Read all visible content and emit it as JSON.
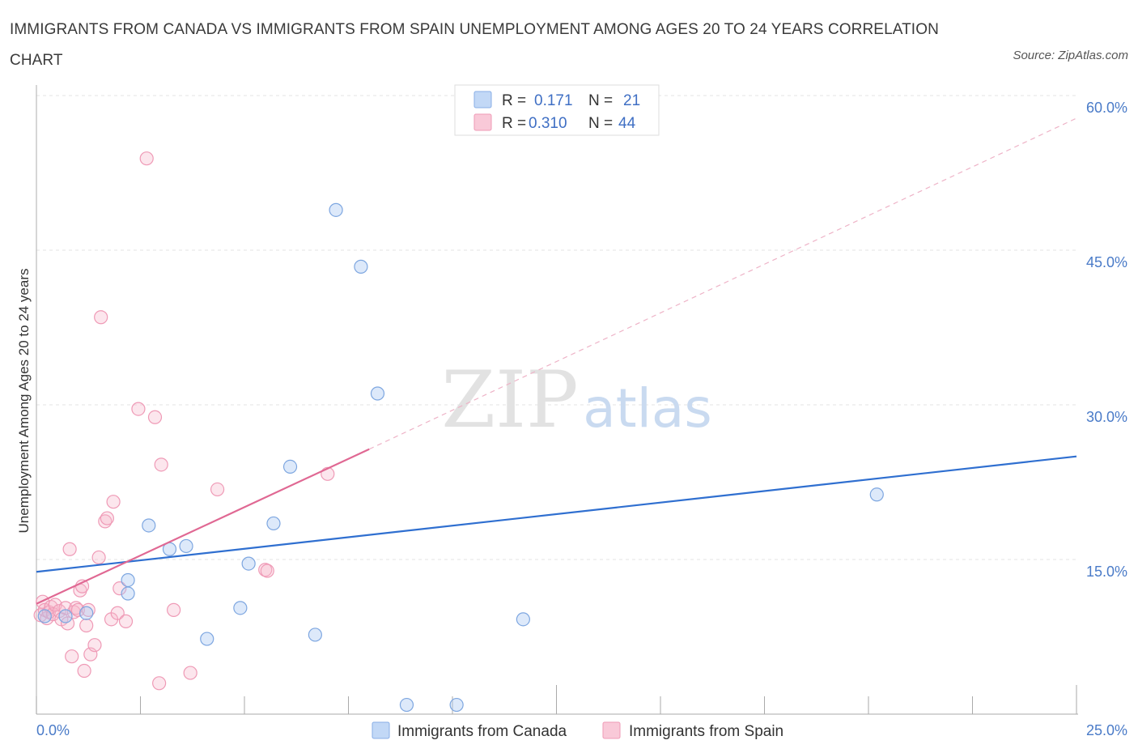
{
  "title": "IMMIGRANTS FROM CANADA VS IMMIGRANTS FROM SPAIN UNEMPLOYMENT AMONG AGES 20 TO 24 YEARS CORRELATION CHART",
  "source": "Source: ZipAtlas.com",
  "colors": {
    "canada": "#a9c8f3",
    "canada_line": "#2f6fd0",
    "spain": "#f7b8cb",
    "spain_line": "#e06893",
    "axis_text": "#4a7bc8"
  },
  "chart_data": {
    "type": "scatter",
    "title": "IMMIGRANTS FROM CANADA VS IMMIGRANTS FROM SPAIN UNEMPLOYMENT AMONG AGES 20 TO 24 YEARS CORRELATION CHART",
    "xlabel": "",
    "ylabel": "Unemployment Among Ages 20 to 24 years",
    "xlim": [
      0,
      25
    ],
    "ylim": [
      0,
      60
    ],
    "x_tick_labels": [
      "0.0%",
      "25.0%"
    ],
    "y_ticks": [
      15,
      30,
      45,
      60
    ],
    "y_tick_labels": [
      "15.0%",
      "30.0%",
      "45.0%",
      "60.0%"
    ],
    "grid": true,
    "legend_top": [
      {
        "r_label": "R =",
        "r_value": "0.171",
        "n_label": "N =",
        "n_value": "21"
      },
      {
        "r_label": "R =",
        "r_value": "0.310",
        "n_label": "N =",
        "n_value": "44"
      }
    ],
    "series": [
      {
        "name": "Immigrants from Canada",
        "points": [
          [
            0.2,
            9.5
          ],
          [
            0.7,
            9.5
          ],
          [
            1.2,
            9.8
          ],
          [
            2.2,
            11.7
          ],
          [
            2.2,
            13.0
          ],
          [
            2.7,
            18.3
          ],
          [
            3.2,
            16.0
          ],
          [
            3.6,
            16.3
          ],
          [
            4.1,
            7.3
          ],
          [
            4.9,
            10.3
          ],
          [
            5.1,
            14.6
          ],
          [
            5.7,
            18.5
          ],
          [
            6.1,
            24.0
          ],
          [
            6.7,
            7.7
          ],
          [
            7.2,
            48.9
          ],
          [
            7.8,
            43.4
          ],
          [
            8.2,
            31.1
          ],
          [
            8.9,
            0.9
          ],
          [
            10.1,
            0.9
          ],
          [
            11.7,
            9.2
          ],
          [
            20.2,
            21.3
          ]
        ],
        "trend": {
          "x": [
            0,
            25
          ],
          "y": [
            13.8,
            25.0
          ]
        }
      },
      {
        "name": "Immigrants from Spain",
        "points": [
          [
            0.1,
            9.6
          ],
          [
            0.15,
            10.9
          ],
          [
            0.2,
            10.1
          ],
          [
            0.25,
            9.3
          ],
          [
            0.3,
            9.9
          ],
          [
            0.35,
            10.4
          ],
          [
            0.4,
            9.7
          ],
          [
            0.45,
            10.6
          ],
          [
            0.55,
            10.0
          ],
          [
            0.6,
            9.2
          ],
          [
            0.7,
            10.3
          ],
          [
            0.75,
            8.8
          ],
          [
            0.8,
            16.0
          ],
          [
            0.85,
            5.6
          ],
          [
            0.9,
            9.9
          ],
          [
            0.95,
            10.3
          ],
          [
            1.0,
            10.1
          ],
          [
            1.05,
            12.0
          ],
          [
            1.1,
            12.4
          ],
          [
            1.15,
            4.2
          ],
          [
            1.2,
            8.6
          ],
          [
            1.25,
            10.1
          ],
          [
            1.3,
            5.8
          ],
          [
            1.4,
            6.7
          ],
          [
            1.5,
            15.2
          ],
          [
            1.55,
            38.5
          ],
          [
            1.65,
            18.7
          ],
          [
            1.7,
            19.0
          ],
          [
            1.8,
            9.2
          ],
          [
            1.85,
            20.6
          ],
          [
            1.95,
            9.8
          ],
          [
            2.0,
            12.2
          ],
          [
            2.15,
            9.0
          ],
          [
            2.45,
            29.6
          ],
          [
            2.65,
            53.9
          ],
          [
            2.85,
            28.8
          ],
          [
            2.95,
            3.0
          ],
          [
            3.0,
            24.2
          ],
          [
            3.3,
            10.1
          ],
          [
            3.7,
            4.0
          ],
          [
            4.35,
            21.8
          ],
          [
            5.5,
            14.0
          ],
          [
            5.55,
            13.9
          ],
          [
            7.0,
            23.3
          ]
        ],
        "trend": {
          "x": [
            0,
            8
          ],
          "y": [
            10.7,
            25.7
          ]
        },
        "trend_extended": {
          "x": [
            8,
            25
          ],
          "y": [
            25.7,
            57.8
          ]
        }
      }
    ]
  },
  "legend_bottom": [
    "Immigrants from Canada",
    "Immigrants from Spain"
  ],
  "watermark": {
    "zip": "ZIP",
    "atlas": "atlas"
  }
}
